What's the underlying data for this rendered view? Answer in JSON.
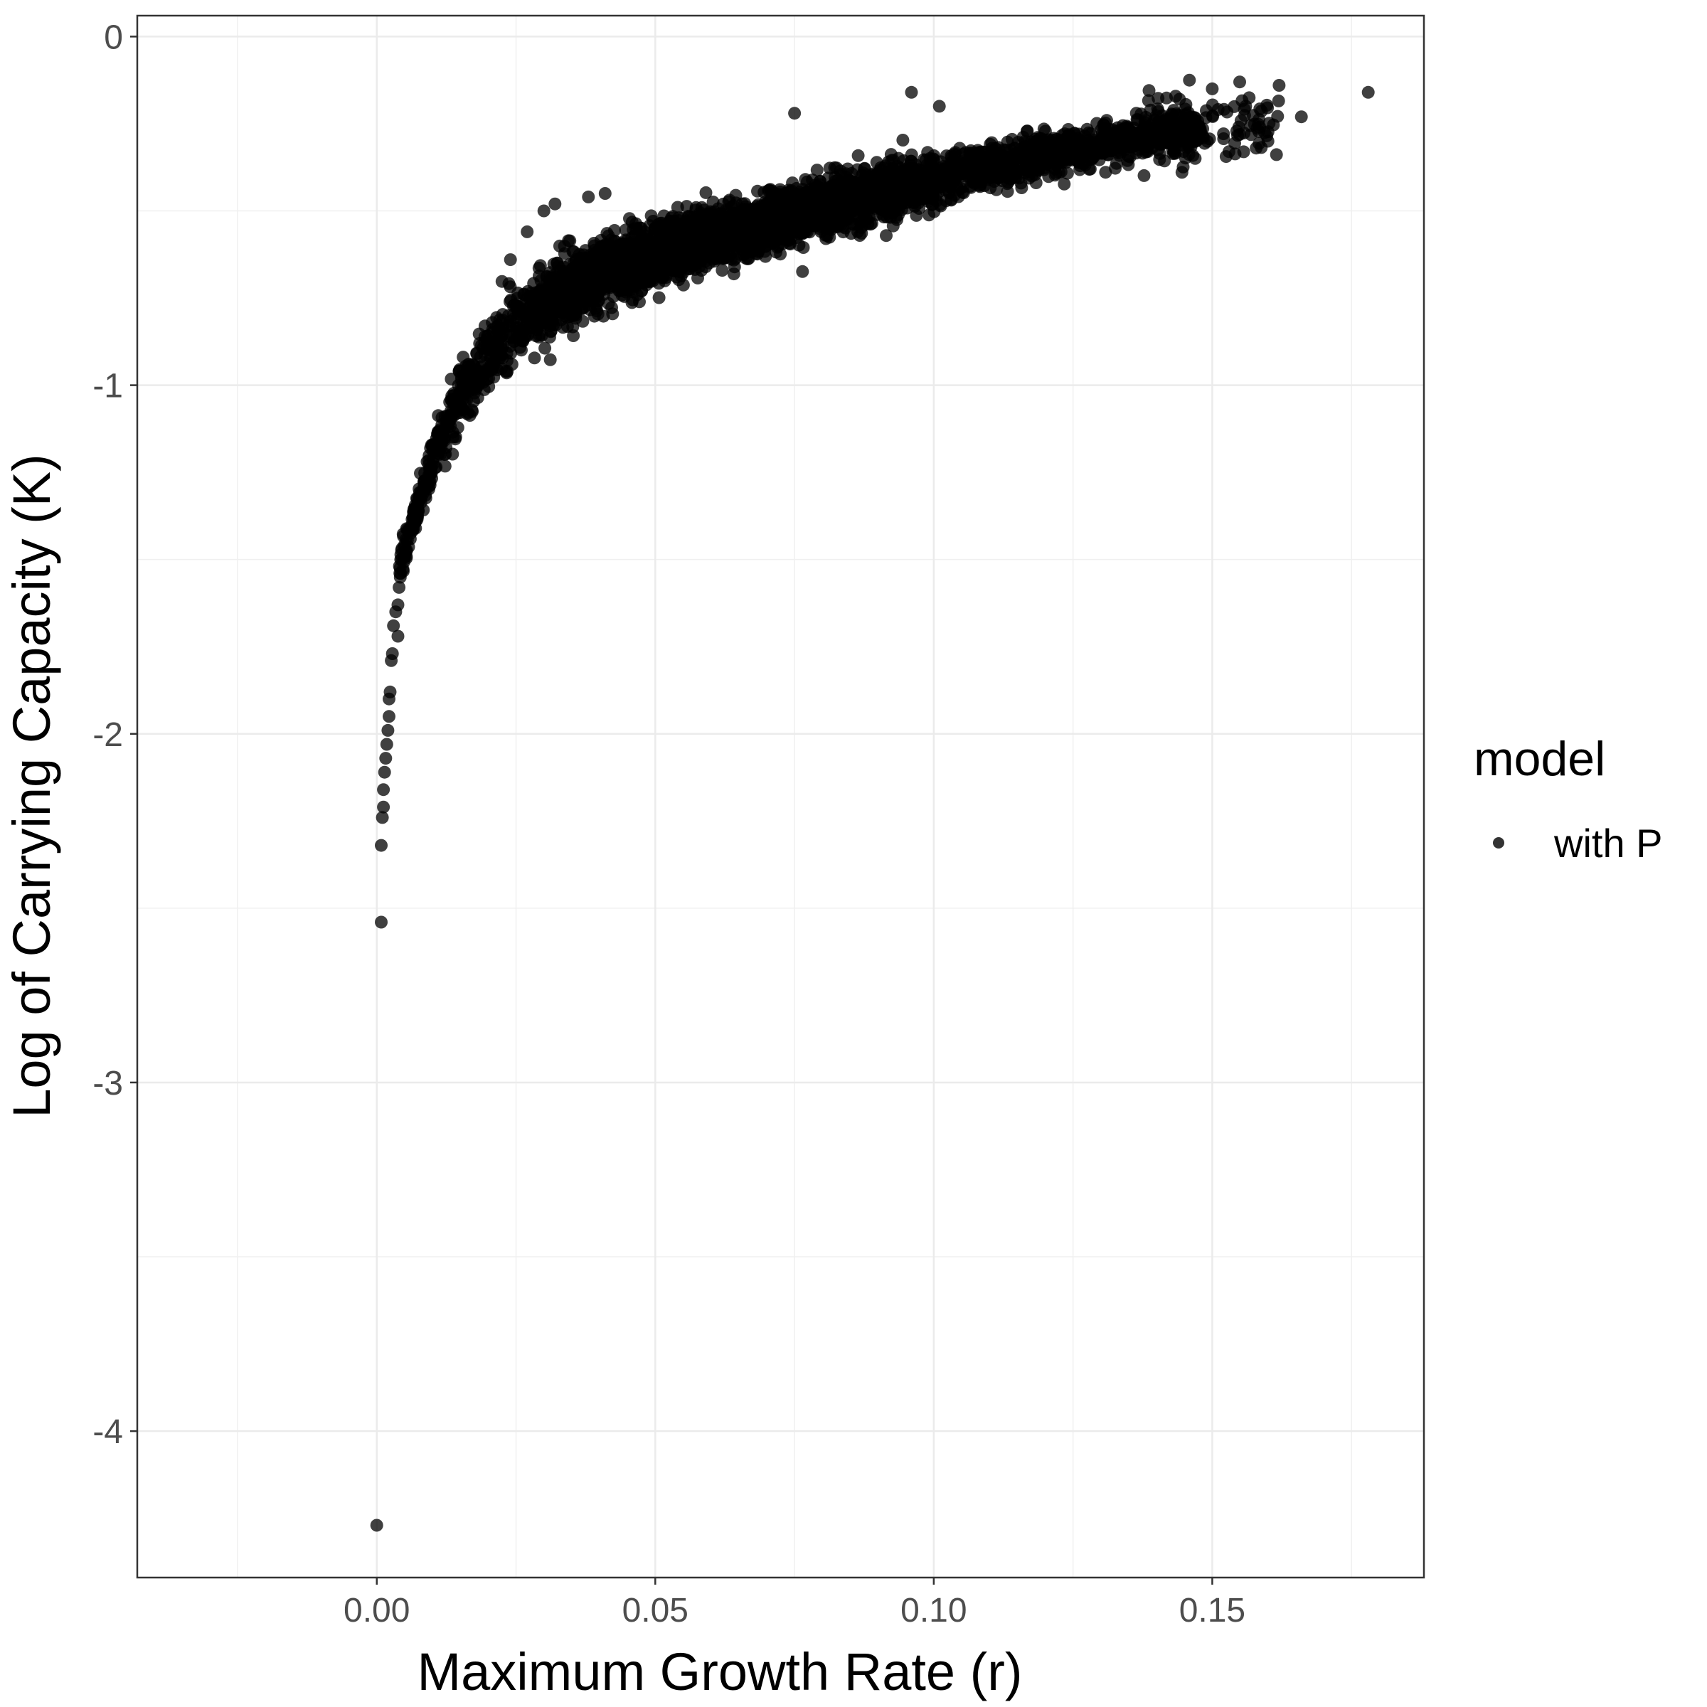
{
  "chart_data": {
    "type": "scatter",
    "title": "",
    "xlabel": "Maximum Growth Rate (r)",
    "ylabel": "Log of Carrying Capacity (K)",
    "xlim": [
      -0.043,
      0.188
    ],
    "ylim": [
      -4.42,
      0.06
    ],
    "x_ticks": [
      0.0,
      0.05,
      0.1,
      0.15
    ],
    "x_tick_labels": [
      "0.00",
      "0.05",
      "0.10",
      "0.15"
    ],
    "y_ticks": [
      0,
      -1,
      -2,
      -3,
      -4
    ],
    "y_tick_labels": [
      "0",
      "-1",
      "-2",
      "-3",
      "-4"
    ],
    "grid": true,
    "legend": {
      "title": "model",
      "placement": "right",
      "entries": [
        {
          "label": "with P",
          "color": "#000000"
        }
      ]
    },
    "point_color": "#000000",
    "point_opacity": 0.75,
    "outliers": [
      {
        "x": 0.0,
        "y": -4.27
      },
      {
        "x": 0.0008,
        "y": -2.54
      },
      {
        "x": 0.0008,
        "y": -2.32
      },
      {
        "x": 0.001,
        "y": -2.24
      },
      {
        "x": 0.0012,
        "y": -2.21
      },
      {
        "x": 0.0012,
        "y": -2.16
      },
      {
        "x": 0.0014,
        "y": -2.11
      },
      {
        "x": 0.0016,
        "y": -2.07
      },
      {
        "x": 0.0018,
        "y": -2.03
      },
      {
        "x": 0.002,
        "y": -1.99
      },
      {
        "x": 0.0022,
        "y": -1.95
      },
      {
        "x": 0.0022,
        "y": -1.9
      },
      {
        "x": 0.0024,
        "y": -1.88
      },
      {
        "x": 0.0026,
        "y": -1.79
      },
      {
        "x": 0.0028,
        "y": -1.77
      },
      {
        "x": 0.003,
        "y": -1.69
      },
      {
        "x": 0.0034,
        "y": -1.65
      },
      {
        "x": 0.0038,
        "y": -1.63
      },
      {
        "x": 0.004,
        "y": -1.58
      },
      {
        "x": 0.0038,
        "y": -1.72
      },
      {
        "x": 0.178,
        "y": -0.16
      },
      {
        "x": 0.166,
        "y": -0.23
      },
      {
        "x": 0.162,
        "y": -0.14
      },
      {
        "x": 0.16,
        "y": -0.3
      },
      {
        "x": 0.156,
        "y": -0.2
      },
      {
        "x": 0.153,
        "y": -0.33
      },
      {
        "x": 0.15,
        "y": -0.15
      },
      {
        "x": 0.096,
        "y": -0.16
      },
      {
        "x": 0.101,
        "y": -0.2
      },
      {
        "x": 0.075,
        "y": -0.22
      },
      {
        "x": 0.041,
        "y": -0.45
      },
      {
        "x": 0.038,
        "y": -0.46
      },
      {
        "x": 0.032,
        "y": -0.48
      },
      {
        "x": 0.03,
        "y": -0.5
      },
      {
        "x": 0.027,
        "y": -0.56
      },
      {
        "x": 0.024,
        "y": -0.64
      }
    ],
    "trend_band": [
      {
        "x": 0.004,
        "y_center": -1.52,
        "spread": 0.05
      },
      {
        "x": 0.006,
        "y_center": -1.42,
        "spread": 0.06
      },
      {
        "x": 0.008,
        "y_center": -1.32,
        "spread": 0.07
      },
      {
        "x": 0.01,
        "y_center": -1.22,
        "spread": 0.08
      },
      {
        "x": 0.012,
        "y_center": -1.13,
        "spread": 0.09
      },
      {
        "x": 0.015,
        "y_center": -1.03,
        "spread": 0.1
      },
      {
        "x": 0.02,
        "y_center": -0.91,
        "spread": 0.11
      },
      {
        "x": 0.025,
        "y_center": -0.83,
        "spread": 0.11
      },
      {
        "x": 0.03,
        "y_center": -0.77,
        "spread": 0.11
      },
      {
        "x": 0.04,
        "y_center": -0.68,
        "spread": 0.1
      },
      {
        "x": 0.05,
        "y_center": -0.62,
        "spread": 0.1
      },
      {
        "x": 0.06,
        "y_center": -0.57,
        "spread": 0.09
      },
      {
        "x": 0.07,
        "y_center": -0.53,
        "spread": 0.09
      },
      {
        "x": 0.08,
        "y_center": -0.49,
        "spread": 0.09
      },
      {
        "x": 0.09,
        "y_center": -0.45,
        "spread": 0.08
      },
      {
        "x": 0.1,
        "y_center": -0.41,
        "spread": 0.08
      },
      {
        "x": 0.11,
        "y_center": -0.37,
        "spread": 0.07
      },
      {
        "x": 0.12,
        "y_center": -0.34,
        "spread": 0.07
      },
      {
        "x": 0.13,
        "y_center": -0.31,
        "spread": 0.06
      },
      {
        "x": 0.14,
        "y_center": -0.28,
        "spread": 0.06
      },
      {
        "x": 0.148,
        "y_center": -0.27,
        "spread": 0.06
      }
    ]
  }
}
